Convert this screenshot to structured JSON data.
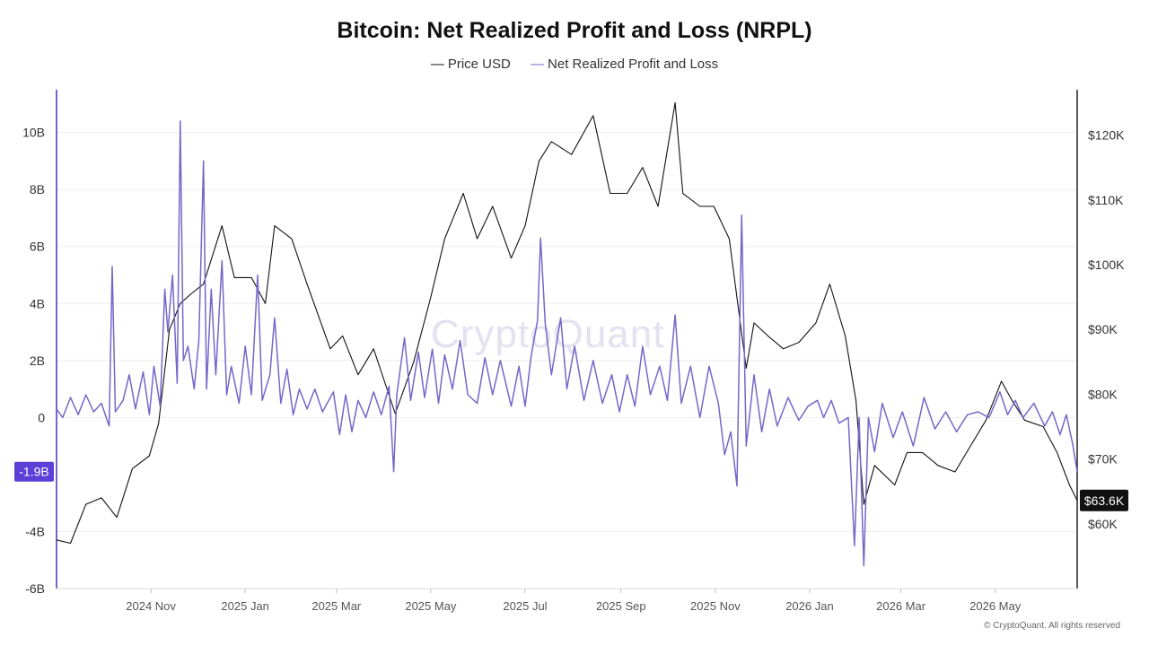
{
  "chart_data": {
    "type": "line",
    "title": "Bitcoin: Net Realized Profit and Loss (NRPL)",
    "legend": {
      "placement": "top-center",
      "entries": [
        "Price USD",
        "Net Realized Profit and Loss"
      ]
    },
    "watermark": "CryptoQuant",
    "copyright": "© CryptoQuant. All rights reserved",
    "grid": true,
    "x_axis": {
      "range": [
        "2024-09-01",
        "2026-06-23"
      ],
      "tick_labels": [
        "2024 Nov",
        "2025 Jan",
        "2025 Mar",
        "2025 May",
        "2025 Jul",
        "2025 Sep",
        "2025 Nov",
        "2026 Jan",
        "2026 Mar",
        "2026 May"
      ],
      "tick_dates": [
        "2024-11-01",
        "2025-01-01",
        "2025-03-01",
        "2025-05-01",
        "2025-07-01",
        "2025-09-01",
        "2025-11-01",
        "2026-01-01",
        "2026-03-01",
        "2026-05-01"
      ]
    },
    "y_left": {
      "range": [
        -6,
        11.5
      ],
      "unit": "B",
      "ticks": [
        10,
        8,
        6,
        4,
        2,
        0,
        -4,
        -6
      ],
      "tick_labels": [
        "10B",
        "8B",
        "6B",
        "4B",
        "2B",
        "0",
        "-4B",
        "-6B"
      ],
      "current_label": "-1.9B",
      "current_value": -1.9
    },
    "y_right": {
      "range": [
        50000,
        127000
      ],
      "ticks": [
        120000,
        110000,
        100000,
        90000,
        80000,
        70000,
        60000
      ],
      "tick_labels": [
        "$120K",
        "$110K",
        "$100K",
        "$90K",
        "$80K",
        "$70K",
        "$60K"
      ],
      "current_label": "$63.6K",
      "current_value": 63600
    },
    "series": [
      {
        "name": "Price USD",
        "color": "#111111",
        "axis": "right",
        "points": [
          [
            "2024-09-01",
            57500
          ],
          [
            "2024-09-10",
            57000
          ],
          [
            "2024-09-20",
            63000
          ],
          [
            "2024-09-30",
            64000
          ],
          [
            "2024-10-10",
            61000
          ],
          [
            "2024-10-20",
            68500
          ],
          [
            "2024-10-31",
            70500
          ],
          [
            "2024-11-06",
            75500
          ],
          [
            "2024-11-13",
            90000
          ],
          [
            "2024-11-20",
            94000
          ],
          [
            "2024-11-27",
            95500
          ],
          [
            "2024-12-05",
            97000
          ],
          [
            "2024-12-17",
            106000
          ],
          [
            "2024-12-25",
            98000
          ],
          [
            "2025-01-05",
            98000
          ],
          [
            "2025-01-14",
            94000
          ],
          [
            "2025-01-20",
            106000
          ],
          [
            "2025-01-31",
            104000
          ],
          [
            "2025-02-10",
            97000
          ],
          [
            "2025-02-25",
            87000
          ],
          [
            "2025-03-05",
            89000
          ],
          [
            "2025-03-15",
            83000
          ],
          [
            "2025-03-25",
            87000
          ],
          [
            "2025-04-08",
            77000
          ],
          [
            "2025-04-20",
            85000
          ],
          [
            "2025-05-01",
            95000
          ],
          [
            "2025-05-10",
            104000
          ],
          [
            "2025-05-22",
            111000
          ],
          [
            "2025-05-31",
            104000
          ],
          [
            "2025-06-10",
            109000
          ],
          [
            "2025-06-22",
            101000
          ],
          [
            "2025-07-01",
            106000
          ],
          [
            "2025-07-10",
            116000
          ],
          [
            "2025-07-18",
            119000
          ],
          [
            "2025-07-31",
            117000
          ],
          [
            "2025-08-14",
            123000
          ],
          [
            "2025-08-25",
            111000
          ],
          [
            "2025-09-05",
            111000
          ],
          [
            "2025-09-15",
            115000
          ],
          [
            "2025-09-25",
            109000
          ],
          [
            "2025-10-06",
            125000
          ],
          [
            "2025-10-11",
            111000
          ],
          [
            "2025-10-22",
            109000
          ],
          [
            "2025-10-31",
            109000
          ],
          [
            "2025-11-10",
            104000
          ],
          [
            "2025-11-21",
            84000
          ],
          [
            "2025-11-26",
            91000
          ],
          [
            "2025-12-05",
            89000
          ],
          [
            "2025-12-15",
            87000
          ],
          [
            "2025-12-25",
            88000
          ],
          [
            "2026-01-05",
            91000
          ],
          [
            "2026-01-14",
            97000
          ],
          [
            "2026-01-24",
            89000
          ],
          [
            "2026-01-31",
            79000
          ],
          [
            "2026-02-05",
            63000
          ],
          [
            "2026-02-12",
            69000
          ],
          [
            "2026-02-25",
            66000
          ],
          [
            "2026-03-05",
            71000
          ],
          [
            "2026-03-15",
            71000
          ],
          [
            "2026-03-25",
            69000
          ],
          [
            "2026-04-05",
            68000
          ],
          [
            "2026-04-15",
            72000
          ],
          [
            "2026-04-25",
            76000
          ],
          [
            "2026-05-05",
            82000
          ],
          [
            "2026-05-12",
            79000
          ],
          [
            "2026-05-20",
            76000
          ],
          [
            "2026-06-01",
            75000
          ],
          [
            "2026-06-10",
            71000
          ],
          [
            "2026-06-18",
            66000
          ],
          [
            "2026-06-23",
            63600
          ]
        ]
      },
      {
        "name": "Net Realized Profit and Loss",
        "color": "#7766c8",
        "axis": "left",
        "points": [
          [
            "2024-09-01",
            0.3
          ],
          [
            "2024-09-05",
            0.0
          ],
          [
            "2024-09-10",
            0.7
          ],
          [
            "2024-09-15",
            0.1
          ],
          [
            "2024-09-20",
            0.8
          ],
          [
            "2024-09-25",
            0.2
          ],
          [
            "2024-09-30",
            0.5
          ],
          [
            "2024-10-05",
            -0.3
          ],
          [
            "2024-10-07",
            5.3
          ],
          [
            "2024-10-09",
            0.2
          ],
          [
            "2024-10-14",
            0.6
          ],
          [
            "2024-10-18",
            1.5
          ],
          [
            "2024-10-22",
            0.3
          ],
          [
            "2024-10-27",
            1.6
          ],
          [
            "2024-10-31",
            0.1
          ],
          [
            "2024-11-03",
            1.8
          ],
          [
            "2024-11-07",
            0.4
          ],
          [
            "2024-11-10",
            4.5
          ],
          [
            "2024-11-12",
            3.0
          ],
          [
            "2024-11-15",
            5.0
          ],
          [
            "2024-11-18",
            1.2
          ],
          [
            "2024-11-20",
            10.4
          ],
          [
            "2024-11-22",
            2.0
          ],
          [
            "2024-11-25",
            2.5
          ],
          [
            "2024-11-29",
            1.0
          ],
          [
            "2024-12-02",
            2.7
          ],
          [
            "2024-12-05",
            9.0
          ],
          [
            "2024-12-07",
            1.0
          ],
          [
            "2024-12-10",
            4.5
          ],
          [
            "2024-12-13",
            1.5
          ],
          [
            "2024-12-17",
            5.5
          ],
          [
            "2024-12-20",
            0.8
          ],
          [
            "2024-12-23",
            1.8
          ],
          [
            "2024-12-28",
            0.5
          ],
          [
            "2025-01-01",
            2.5
          ],
          [
            "2025-01-05",
            0.8
          ],
          [
            "2025-01-09",
            5.0
          ],
          [
            "2025-01-12",
            0.6
          ],
          [
            "2025-01-17",
            1.5
          ],
          [
            "2025-01-20",
            3.5
          ],
          [
            "2025-01-24",
            0.5
          ],
          [
            "2025-01-28",
            1.7
          ],
          [
            "2025-02-01",
            0.1
          ],
          [
            "2025-02-05",
            1.0
          ],
          [
            "2025-02-10",
            0.3
          ],
          [
            "2025-02-15",
            1.0
          ],
          [
            "2025-02-20",
            0.2
          ],
          [
            "2025-02-27",
            0.9
          ],
          [
            "2025-03-03",
            -0.6
          ],
          [
            "2025-03-07",
            0.8
          ],
          [
            "2025-03-11",
            -0.5
          ],
          [
            "2025-03-15",
            0.6
          ],
          [
            "2025-03-20",
            0.0
          ],
          [
            "2025-03-25",
            0.9
          ],
          [
            "2025-03-30",
            0.1
          ],
          [
            "2025-04-04",
            1.1
          ],
          [
            "2025-04-07",
            -1.9
          ],
          [
            "2025-04-09",
            0.8
          ],
          [
            "2025-04-14",
            2.8
          ],
          [
            "2025-04-18",
            0.6
          ],
          [
            "2025-04-23",
            2.3
          ],
          [
            "2025-04-27",
            0.7
          ],
          [
            "2025-05-02",
            2.4
          ],
          [
            "2025-05-06",
            0.5
          ],
          [
            "2025-05-10",
            2.2
          ],
          [
            "2025-05-15",
            1.0
          ],
          [
            "2025-05-20",
            2.7
          ],
          [
            "2025-05-25",
            0.8
          ],
          [
            "2025-05-31",
            0.5
          ],
          [
            "2025-06-05",
            2.1
          ],
          [
            "2025-06-10",
            0.8
          ],
          [
            "2025-06-15",
            2.0
          ],
          [
            "2025-06-22",
            0.4
          ],
          [
            "2025-06-27",
            1.8
          ],
          [
            "2025-07-01",
            0.4
          ],
          [
            "2025-07-05",
            2.2
          ],
          [
            "2025-07-09",
            3.4
          ],
          [
            "2025-07-11",
            6.3
          ],
          [
            "2025-07-14",
            3.3
          ],
          [
            "2025-07-18",
            1.5
          ],
          [
            "2025-07-24",
            3.5
          ],
          [
            "2025-07-28",
            1.0
          ],
          [
            "2025-08-02",
            2.5
          ],
          [
            "2025-08-08",
            0.6
          ],
          [
            "2025-08-14",
            2.0
          ],
          [
            "2025-08-20",
            0.5
          ],
          [
            "2025-08-26",
            1.5
          ],
          [
            "2025-08-31",
            0.2
          ],
          [
            "2025-09-05",
            1.5
          ],
          [
            "2025-09-10",
            0.4
          ],
          [
            "2025-09-15",
            2.5
          ],
          [
            "2025-09-20",
            0.8
          ],
          [
            "2025-09-26",
            1.8
          ],
          [
            "2025-10-01",
            0.6
          ],
          [
            "2025-10-06",
            3.6
          ],
          [
            "2025-10-10",
            0.5
          ],
          [
            "2025-10-16",
            1.8
          ],
          [
            "2025-10-22",
            0.0
          ],
          [
            "2025-10-28",
            1.8
          ],
          [
            "2025-11-03",
            0.5
          ],
          [
            "2025-11-07",
            -1.3
          ],
          [
            "2025-11-11",
            -0.5
          ],
          [
            "2025-11-15",
            -2.4
          ],
          [
            "2025-11-18",
            7.1
          ],
          [
            "2025-11-21",
            -1.0
          ],
          [
            "2025-11-26",
            1.5
          ],
          [
            "2025-12-01",
            -0.5
          ],
          [
            "2025-12-06",
            1.0
          ],
          [
            "2025-12-11",
            -0.3
          ],
          [
            "2025-12-18",
            0.7
          ],
          [
            "2025-12-25",
            -0.1
          ],
          [
            "2025-12-31",
            0.4
          ],
          [
            "2026-01-06",
            0.6
          ],
          [
            "2026-01-10",
            0.0
          ],
          [
            "2026-01-15",
            0.6
          ],
          [
            "2026-01-20",
            -0.2
          ],
          [
            "2026-01-26",
            0.0
          ],
          [
            "2026-01-30",
            -4.5
          ],
          [
            "2026-02-02",
            0.0
          ],
          [
            "2026-02-05",
            -5.2
          ],
          [
            "2026-02-08",
            0.0
          ],
          [
            "2026-02-12",
            -1.2
          ],
          [
            "2026-02-17",
            0.5
          ],
          [
            "2026-02-24",
            -0.7
          ],
          [
            "2026-03-02",
            0.2
          ],
          [
            "2026-03-09",
            -1.0
          ],
          [
            "2026-03-16",
            0.7
          ],
          [
            "2026-03-23",
            -0.4
          ],
          [
            "2026-03-30",
            0.2
          ],
          [
            "2026-04-06",
            -0.5
          ],
          [
            "2026-04-13",
            0.1
          ],
          [
            "2026-04-20",
            0.2
          ],
          [
            "2026-04-27",
            0.0
          ],
          [
            "2026-05-04",
            0.9
          ],
          [
            "2026-05-09",
            0.1
          ],
          [
            "2026-05-14",
            0.6
          ],
          [
            "2026-05-19",
            0.0
          ],
          [
            "2026-05-26",
            0.5
          ],
          [
            "2026-06-02",
            -0.3
          ],
          [
            "2026-06-07",
            0.2
          ],
          [
            "2026-06-12",
            -0.6
          ],
          [
            "2026-06-16",
            0.1
          ],
          [
            "2026-06-20",
            -0.9
          ],
          [
            "2026-06-23",
            -1.9
          ]
        ]
      }
    ]
  }
}
